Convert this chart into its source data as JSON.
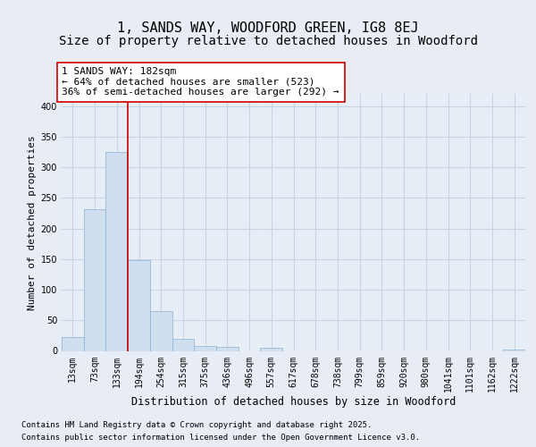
{
  "title": "1, SANDS WAY, WOODFORD GREEN, IG8 8EJ",
  "subtitle": "Size of property relative to detached houses in Woodford",
  "xlabel": "Distribution of detached houses by size in Woodford",
  "ylabel": "Number of detached properties",
  "bar_values": [
    22,
    232,
    325,
    148,
    65,
    20,
    8,
    6,
    0,
    5,
    0,
    0,
    0,
    0,
    0,
    0,
    0,
    0,
    0,
    0,
    2
  ],
  "bin_labels": [
    "13sqm",
    "73sqm",
    "133sqm",
    "194sqm",
    "254sqm",
    "315sqm",
    "375sqm",
    "436sqm",
    "496sqm",
    "557sqm",
    "617sqm",
    "678sqm",
    "738sqm",
    "799sqm",
    "859sqm",
    "920sqm",
    "980sqm",
    "1041sqm",
    "1101sqm",
    "1162sqm",
    "1222sqm"
  ],
  "bar_color": "#d0dff0",
  "bar_edge_color": "#8ab0d0",
  "vline_x_index": 2,
  "vline_color": "#cc0000",
  "annotation_line1": "1 SANDS WAY: 182sqm",
  "annotation_line2": "← 64% of detached houses are smaller (523)",
  "annotation_line3": "36% of semi-detached houses are larger (292) →",
  "annotation_box_facecolor": "#ffffff",
  "annotation_box_edgecolor": "#cc0000",
  "ylim": [
    0,
    420
  ],
  "yticks": [
    0,
    50,
    100,
    150,
    200,
    250,
    300,
    350,
    400
  ],
  "footnote1": "Contains HM Land Registry data © Crown copyright and database right 2025.",
  "footnote2": "Contains public sector information licensed under the Open Government Licence v3.0.",
  "fig_bg_color": "#e8edf5",
  "plot_bg_color": "#e8eef6",
  "grid_color": "#c8d4e4",
  "title_fontsize": 11,
  "subtitle_fontsize": 10,
  "xlabel_fontsize": 8.5,
  "ylabel_fontsize": 8,
  "tick_fontsize": 7,
  "annotation_fontsize": 8,
  "footnote_fontsize": 6.5
}
